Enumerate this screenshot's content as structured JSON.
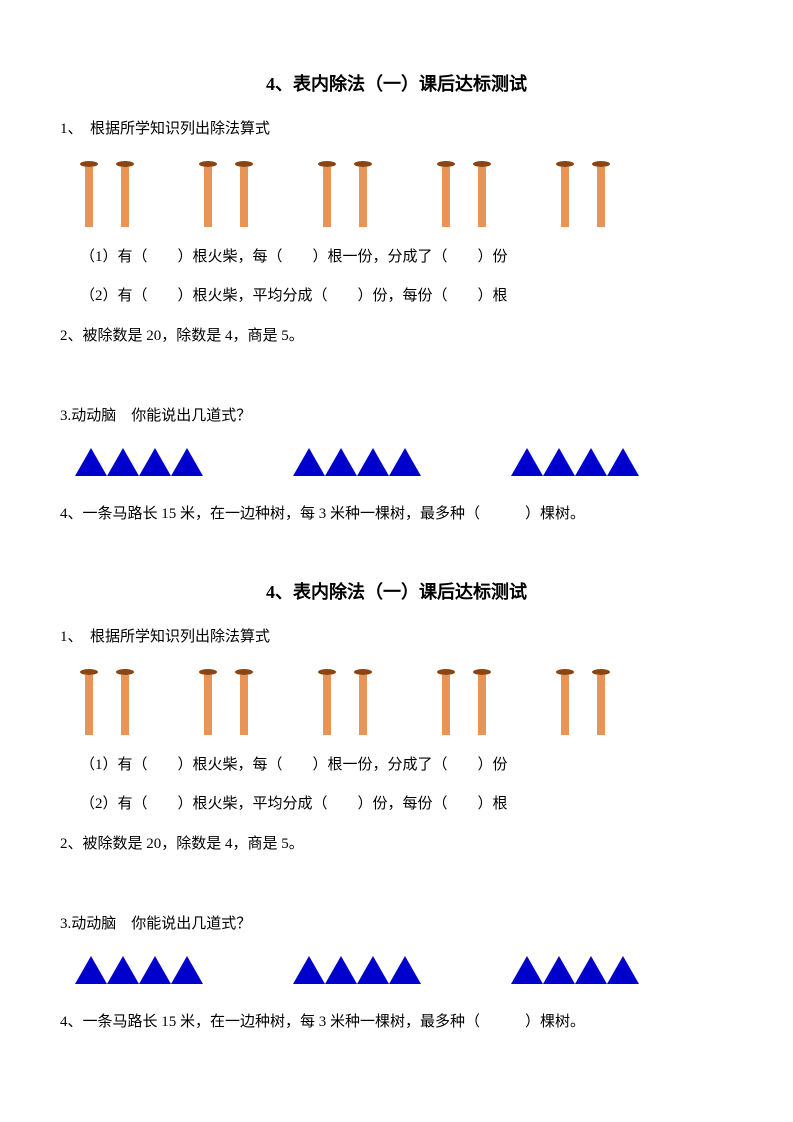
{
  "title": "4、表内除法（一）课后达标测试",
  "q1": {
    "prompt": "1、　根据所学知识列出除法算式",
    "sub1": "（1）有（　　）根火柴，每（　　）根一份，分成了（　　）份",
    "sub2": "（2）有（　　）根火柴，平均分成（　　）份，每份（　　）根",
    "match_groups": 5,
    "match_per_group": 2,
    "match_head_color": "#8B4513",
    "match_stick_color": "#E89456"
  },
  "q2": {
    "text": "2、被除数是 20，除数是 4，商是 5。"
  },
  "q3": {
    "prompt": "3.动动脑　你能说出几道式？",
    "triangle_groups": 3,
    "triangles_per_group": 4,
    "triangle_color": "#0000CC"
  },
  "q4": {
    "text": "4、一条马路长 15 米，在一边种树，每 3 米种一棵树，最多种（　　　）棵树。"
  }
}
